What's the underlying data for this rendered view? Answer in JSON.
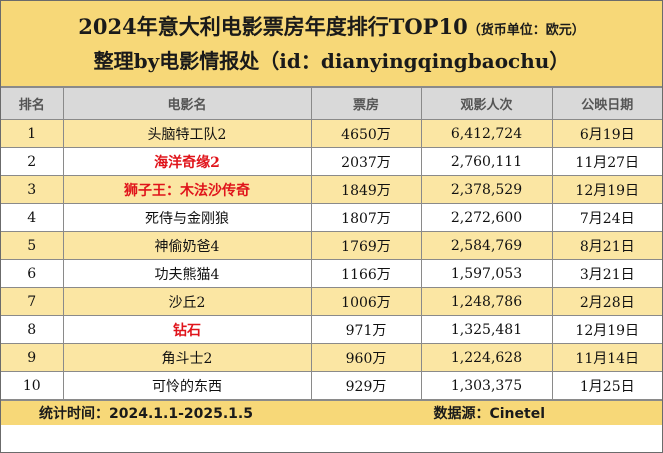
{
  "title": {
    "main": "2024年意大利电影票房年度排行TOP10",
    "unit": "（货币单位：欧元）",
    "subtitle": "整理by电影情报处（id：dianyingqingbaochu）"
  },
  "table": {
    "headers": [
      "排名",
      "电影名",
      "票房",
      "观影人次",
      "公映日期"
    ],
    "rows": [
      {
        "rank": "1",
        "name": "头脑特工队2",
        "gross": "4650万",
        "admissions": "6,412,724",
        "release": "6月19日",
        "highlight": false
      },
      {
        "rank": "2",
        "name": "海洋奇缘2",
        "gross": "2037万",
        "admissions": "2,760,111",
        "release": "11月27日",
        "highlight": true
      },
      {
        "rank": "3",
        "name": "狮子王：木法沙传奇",
        "gross": "1849万",
        "admissions": "2,378,529",
        "release": "12月19日",
        "highlight": true
      },
      {
        "rank": "4",
        "name": "死侍与金刚狼",
        "gross": "1807万",
        "admissions": "2,272,600",
        "release": "7月24日",
        "highlight": false
      },
      {
        "rank": "5",
        "name": "神偷奶爸4",
        "gross": "1769万",
        "admissions": "2,584,769",
        "release": "8月21日",
        "highlight": false
      },
      {
        "rank": "6",
        "name": "功夫熊猫4",
        "gross": "1166万",
        "admissions": "1,597,053",
        "release": "3月21日",
        "highlight": false
      },
      {
        "rank": "7",
        "name": "沙丘2",
        "gross": "1006万",
        "admissions": "1,248,786",
        "release": "2月28日",
        "highlight": false
      },
      {
        "rank": "8",
        "name": "钻石",
        "gross": "971万",
        "admissions": "1,325,481",
        "release": "12月19日",
        "highlight": true
      },
      {
        "rank": "9",
        "name": "角斗士2",
        "gross": "960万",
        "admissions": "1,224,628",
        "release": "11月14日",
        "highlight": false
      },
      {
        "rank": "10",
        "name": "可怜的东西",
        "gross": "929万",
        "admissions": "1,303,375",
        "release": "1月25日",
        "highlight": false
      }
    ]
  },
  "footer": {
    "period": "统计时间：2024.1.1-2025.1.5",
    "source": "数据源：Cinetel"
  },
  "colors": {
    "header_yellow": "#f7d878",
    "row_yellow": "#fbe6a3",
    "highlight_red": "#e0141b",
    "header_gray": "#d9d9d9"
  }
}
